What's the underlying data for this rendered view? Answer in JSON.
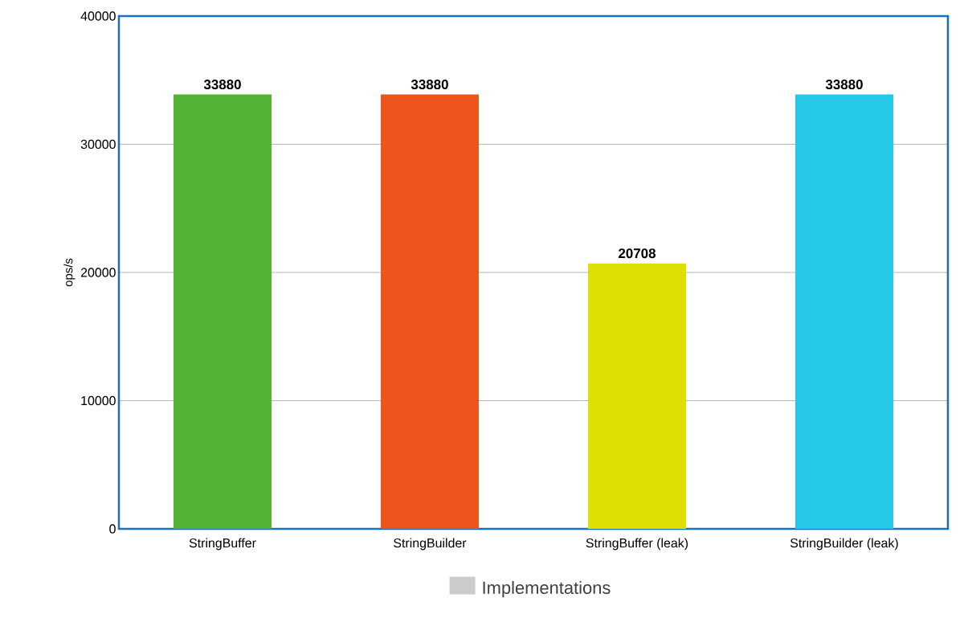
{
  "chart_data": {
    "type": "bar",
    "categories": [
      "StringBuffer",
      "StringBuilder",
      "StringBuffer (leak)",
      "StringBuilder (leak)"
    ],
    "series": [
      {
        "name": "Implementations",
        "color": "#cccccc",
        "colors": [
          "#52b334",
          "#ec561d",
          "#dde000",
          "#25c9e6"
        ],
        "values": [
          33880,
          33880,
          20708,
          33880
        ]
      }
    ],
    "ylabel": "ops/s",
    "ylim": [
      0,
      40000
    ],
    "yticks": [
      0,
      10000,
      20000,
      30000,
      40000
    ],
    "grid": "y",
    "legend": "bottom",
    "data_labels": true
  }
}
